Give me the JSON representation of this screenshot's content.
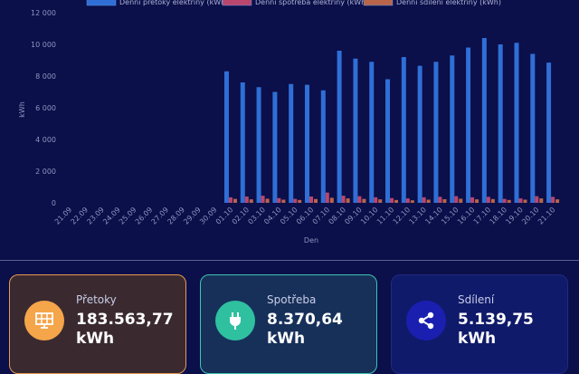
{
  "chart_data": {
    "type": "bar",
    "xlabel": "Den",
    "ylabel": "kWh",
    "ylim": [
      0,
      12000
    ],
    "yticks": [
      0,
      2000,
      4000,
      6000,
      8000,
      10000,
      12000
    ],
    "ytick_labels": [
      "0",
      "2 000",
      "4 000",
      "6 000",
      "8 000",
      "10 000",
      "12 000"
    ],
    "grid": false,
    "legend_position": "top",
    "categories": [
      "21.09",
      "22.09",
      "23.09",
      "24.09",
      "25.09",
      "26.09",
      "27.09",
      "28.09",
      "29.09",
      "30.09",
      "01.10",
      "02.10",
      "03.10",
      "04.10",
      "05.10",
      "06.10",
      "07.10",
      "08.10",
      "09.10",
      "10.10",
      "11.10",
      "12.10",
      "13.10",
      "14.10",
      "15.10",
      "16.10",
      "17.10",
      "18.10",
      "19.10",
      "20.10",
      "21.10"
    ],
    "series": [
      {
        "name": "Denní přetoky elektřiny (kWh)",
        "color": "#2f6fd6",
        "values": [
          0,
          0,
          0,
          0,
          0,
          0,
          0,
          0,
          0,
          0,
          8300,
          7600,
          7300,
          7000,
          7500,
          7450,
          7100,
          9600,
          9100,
          8900,
          7800,
          9200,
          8650,
          8900,
          9300,
          9800,
          10400,
          10000,
          10100,
          9400,
          8850
        ]
      },
      {
        "name": "Denní spotřeba elektřiny (kWh)",
        "color": "#b9466e",
        "values": [
          0,
          0,
          0,
          0,
          0,
          0,
          0,
          0,
          0,
          0,
          350,
          400,
          450,
          300,
          250,
          400,
          650,
          450,
          420,
          350,
          300,
          280,
          350,
          380,
          420,
          350,
          380,
          250,
          280,
          420,
          380
        ]
      },
      {
        "name": "Denní sdílení elektřiny (kWh)",
        "color": "#b8654a",
        "values": [
          0,
          0,
          0,
          0,
          0,
          0,
          0,
          0,
          0,
          0,
          250,
          220,
          260,
          200,
          180,
          240,
          320,
          280,
          250,
          220,
          180,
          160,
          200,
          230,
          260,
          220,
          240,
          180,
          200,
          280,
          220
        ]
      }
    ]
  },
  "cards": [
    {
      "label": "Přetoky",
      "value": "183.563,77",
      "unit": "kWh",
      "icon": "solar-panel-icon",
      "icon_color": "#f5a54a",
      "bg": "#3a2a30",
      "border": "#e89a55"
    },
    {
      "label": "Spotřeba",
      "value": "8.370,64",
      "unit": "kWh",
      "icon": "plug-icon",
      "icon_color": "#2fc0a0",
      "bg": "#17305a",
      "border": "#3fc4b0"
    },
    {
      "label": "Sdílení",
      "value": "5.139,75",
      "unit": "kWh",
      "icon": "share-icon",
      "icon_color": "#1a1fb0",
      "bg": "#0f1a6a",
      "border": "#1f2a80"
    }
  ]
}
